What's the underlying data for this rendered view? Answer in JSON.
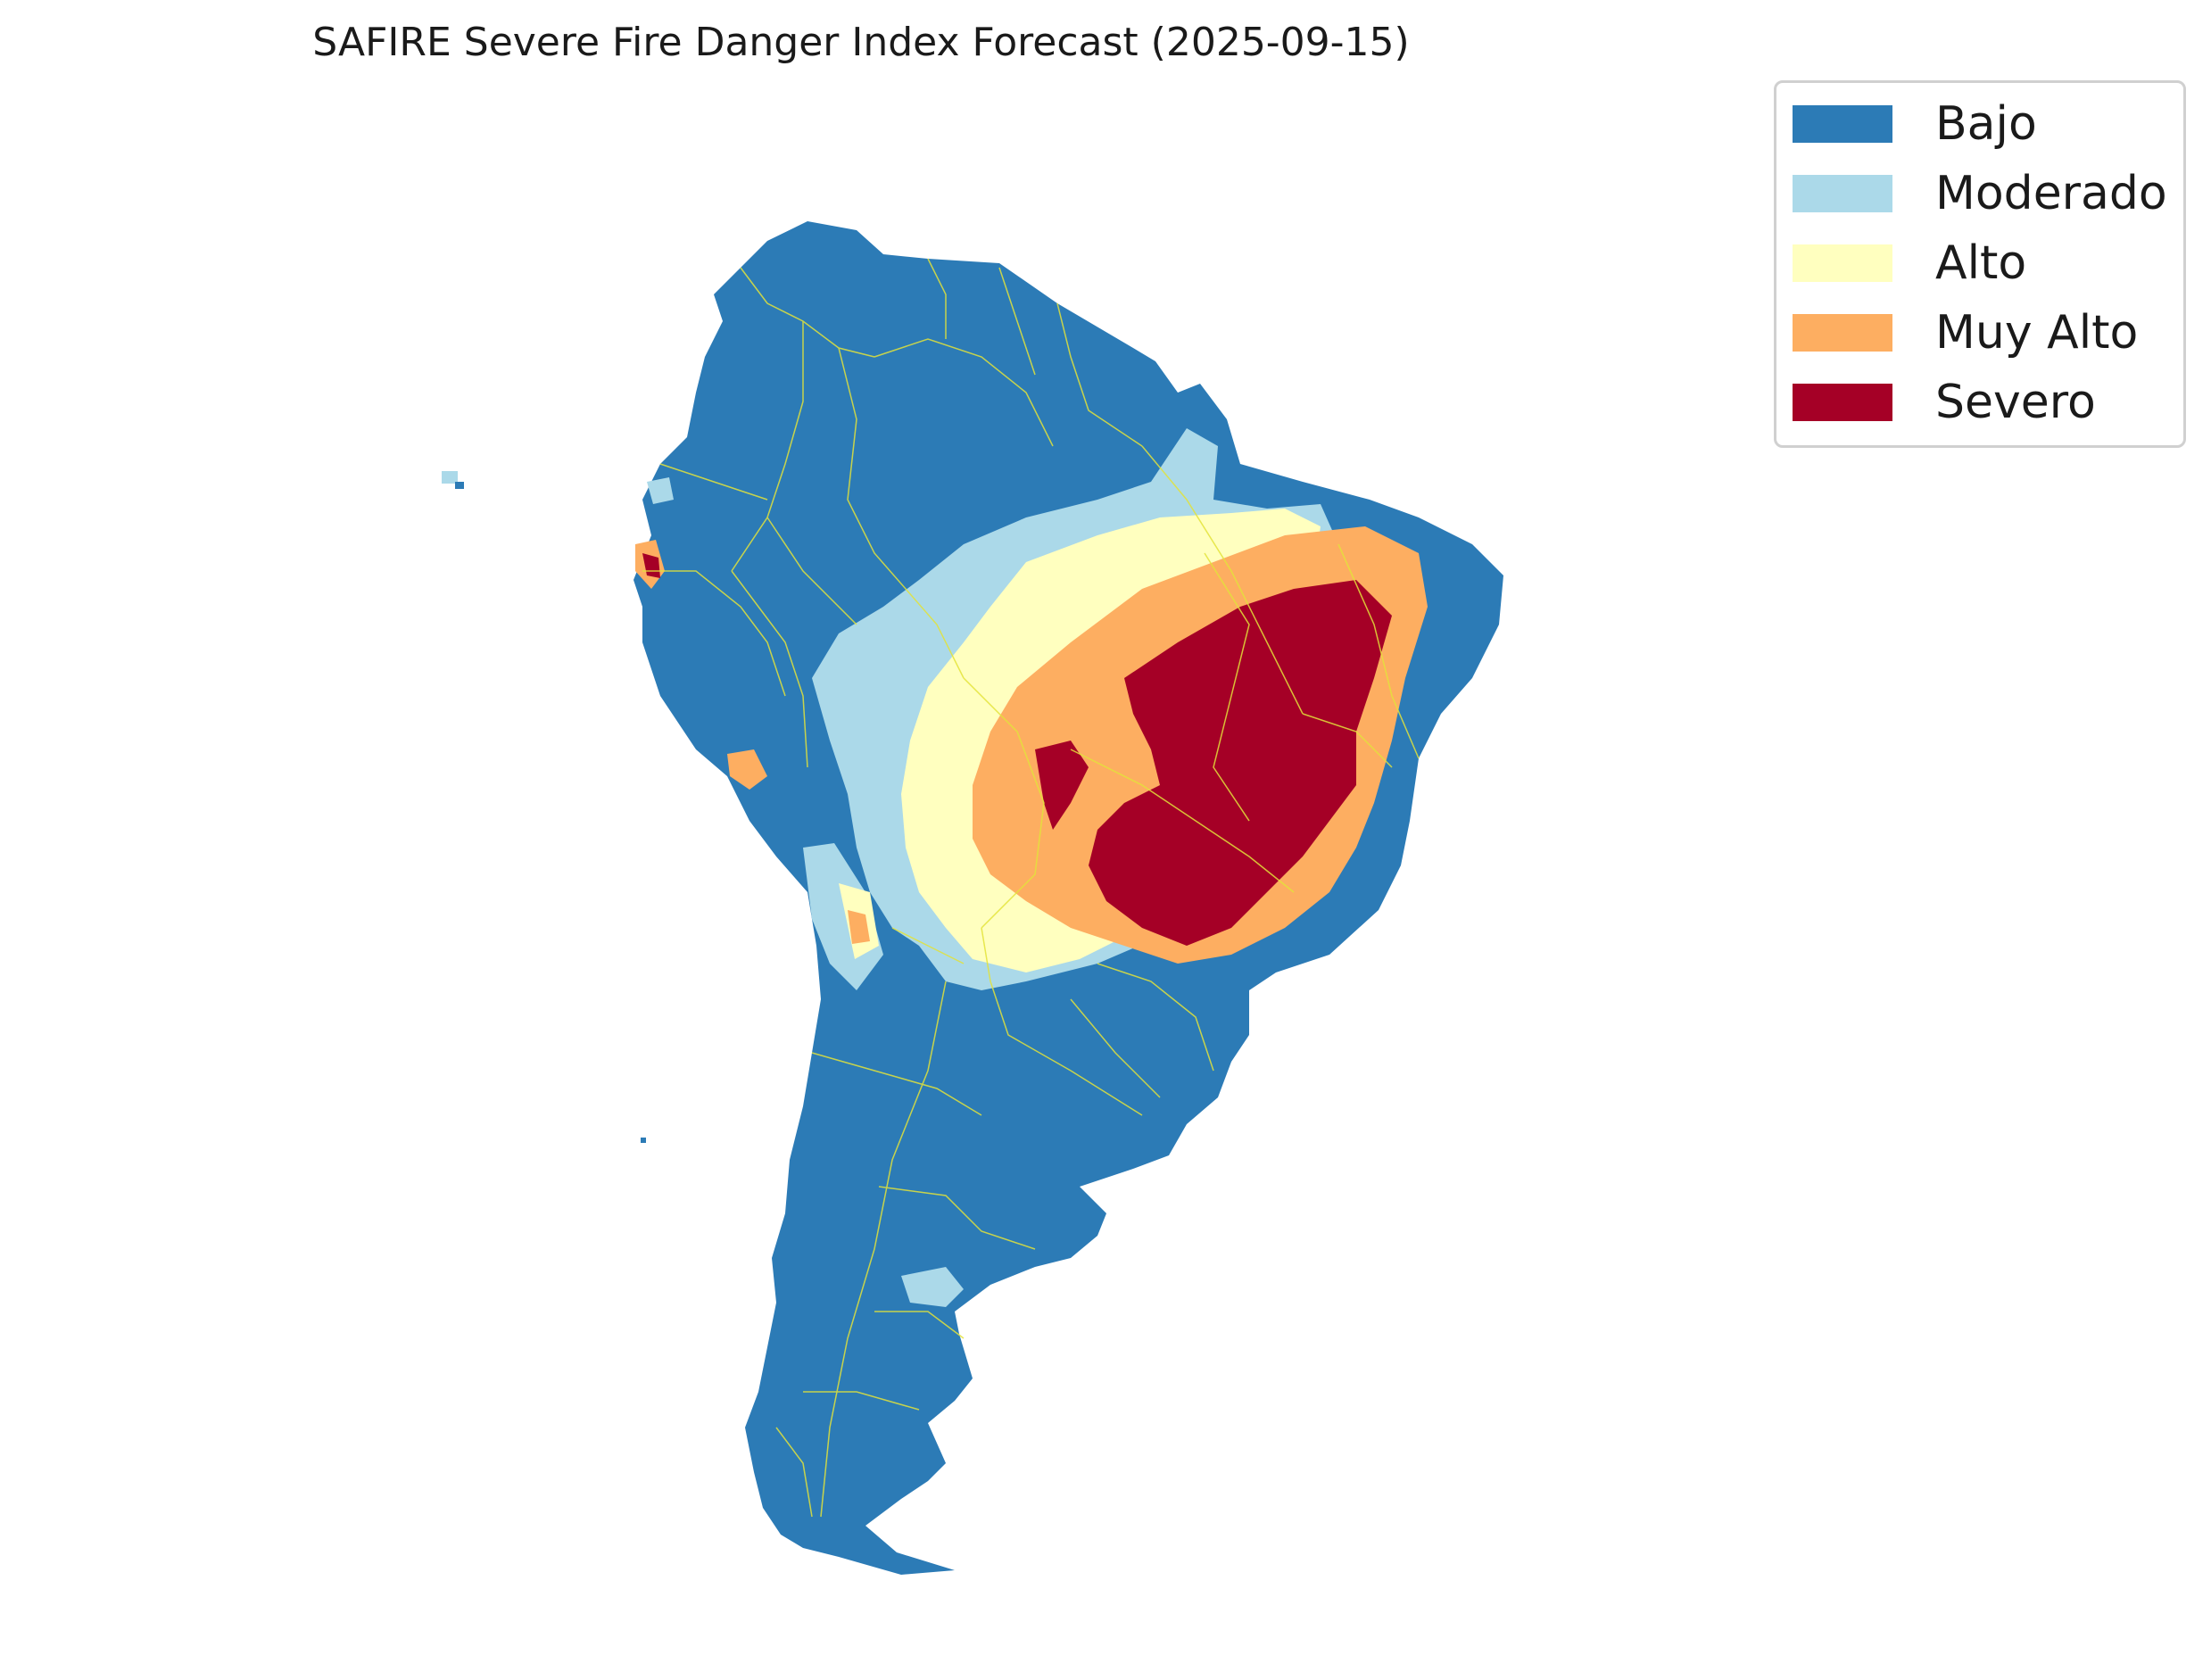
{
  "title": "SAFIRE Severe Fire Danger Index Forecast (2025-09-15)",
  "colors": {
    "border": "#e3e33a"
  },
  "legend": {
    "placement": "upper-right",
    "items": [
      {
        "label": "Bajo",
        "color": "#2c7bb6"
      },
      {
        "label": "Moderado",
        "color": "#abd9e9"
      },
      {
        "label": "Alto",
        "color": "#ffffbf"
      },
      {
        "label": "Muy Alto",
        "color": "#fdae61"
      },
      {
        "label": "Severo",
        "color": "#a50026"
      }
    ]
  }
}
